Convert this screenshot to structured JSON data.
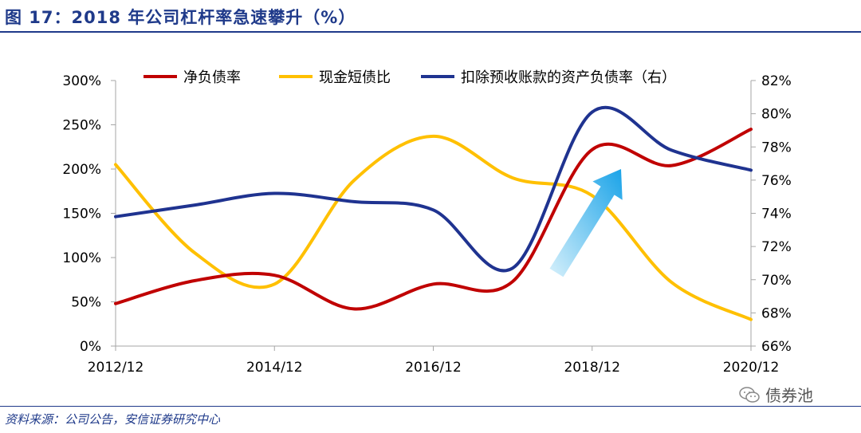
{
  "header": {
    "title": "图 17：2018 年公司杠杆率急速攀升（%）"
  },
  "footer": {
    "source": "资料来源：公司公告，安信证券研究中心",
    "watermark": "债券池"
  },
  "colors": {
    "navy": "#1f3a8a",
    "net_debt": "#c00000",
    "cash_short": "#ffc000",
    "liability": "#1f3390",
    "arrow_top": "#1aa3e8",
    "arrow_bottom": "#d6f0fb"
  },
  "chart_data": {
    "type": "line",
    "x_tick_labels": [
      "2012/12",
      "2014/12",
      "2016/12",
      "2018/12",
      "2020/12"
    ],
    "x_range": [
      2012.5,
      2020.5
    ],
    "left_axis": {
      "range": [
        0,
        300
      ],
      "ticks": [
        0,
        50,
        100,
        150,
        200,
        250,
        300
      ],
      "tick_labels": [
        "0%",
        "50%",
        "100%",
        "150%",
        "200%",
        "250%",
        "300%"
      ]
    },
    "right_axis": {
      "range": [
        66,
        82
      ],
      "ticks": [
        66,
        68,
        70,
        72,
        74,
        76,
        78,
        80,
        82
      ],
      "tick_labels": [
        "66%",
        "68%",
        "70%",
        "72%",
        "74%",
        "76%",
        "78%",
        "80%",
        "82%"
      ]
    },
    "series": [
      {
        "name": "净负债率",
        "axis": "left",
        "color": "#c00000",
        "points": [
          [
            2012.5,
            48
          ],
          [
            2013.5,
            74
          ],
          [
            2014.5,
            80
          ],
          [
            2015.5,
            42
          ],
          [
            2016.5,
            70
          ],
          [
            2017.5,
            73
          ],
          [
            2018.5,
            222
          ],
          [
            2019.5,
            204
          ],
          [
            2020.5,
            245
          ]
        ]
      },
      {
        "name": "现金短债比",
        "axis": "left",
        "color": "#ffc000",
        "points": [
          [
            2012.5,
            205
          ],
          [
            2013.5,
            105
          ],
          [
            2014.5,
            70
          ],
          [
            2015.5,
            187
          ],
          [
            2016.5,
            237
          ],
          [
            2017.5,
            190
          ],
          [
            2018.5,
            170
          ],
          [
            2019.5,
            72
          ],
          [
            2020.5,
            30
          ]
        ]
      },
      {
        "name": "扣除预收账款的资产负债率（右）",
        "axis": "right",
        "color": "#1f3390",
        "points": [
          [
            2012.5,
            73.8
          ],
          [
            2013.5,
            74.5
          ],
          [
            2014.5,
            75.2
          ],
          [
            2015.5,
            74.7
          ],
          [
            2016.5,
            74.2
          ],
          [
            2017.5,
            70.7
          ],
          [
            2018.5,
            80.1
          ],
          [
            2019.5,
            77.8
          ],
          [
            2020.5,
            76.6
          ]
        ]
      }
    ],
    "annotation": "upward-arrow",
    "title": "2018 年公司杠杆率急速攀升（%）",
    "legend_position": "top"
  }
}
